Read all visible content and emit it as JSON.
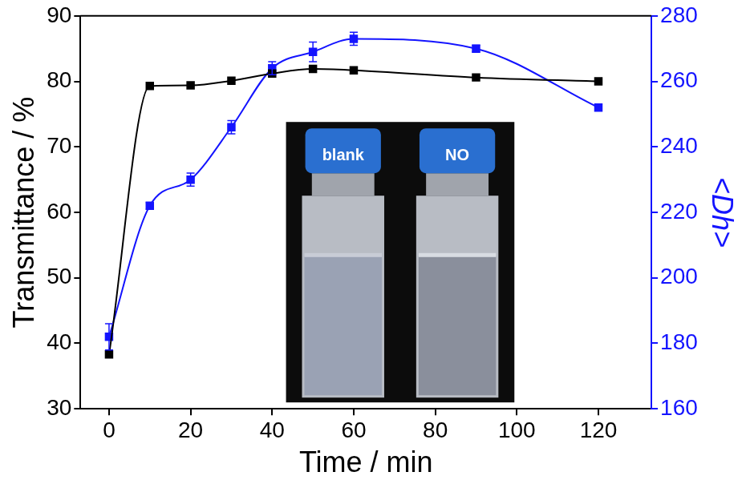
{
  "chart_data": {
    "type": "line",
    "x_label": "Time / min",
    "y_label": "Transmittance / %",
    "y2_label": "<Dh>",
    "annotations": [
      "blank",
      "NO"
    ],
    "x": [
      0,
      10,
      20,
      30,
      40,
      50,
      60,
      90,
      120
    ],
    "xlim": [
      -7,
      133
    ],
    "xticks": [
      0,
      20,
      40,
      60,
      80,
      100,
      120
    ],
    "ylim": [
      30,
      90
    ],
    "yticks": [
      30,
      40,
      50,
      60,
      70,
      80,
      90
    ],
    "y2lim": [
      160,
      280
    ],
    "y2ticks": [
      160,
      180,
      200,
      220,
      240,
      260,
      280
    ],
    "grid": false,
    "series": [
      {
        "name": "Transmittance / %",
        "color": "#000000",
        "marker": "square",
        "line_style": "solid",
        "values": [
          38.3,
          79.3,
          79.4,
          80.1,
          81.2,
          81.9,
          81.7,
          80.6,
          80.0
        ]
      },
      {
        "name": "<Dh>",
        "color": "#1414ff",
        "marker": "square",
        "line_style": "solid",
        "axis": "y2",
        "values": [
          182,
          222,
          230,
          246,
          264,
          269,
          273,
          270,
          252
        ],
        "errors": [
          4,
          1,
          2,
          2,
          2,
          3,
          2,
          1,
          1
        ]
      }
    ]
  }
}
